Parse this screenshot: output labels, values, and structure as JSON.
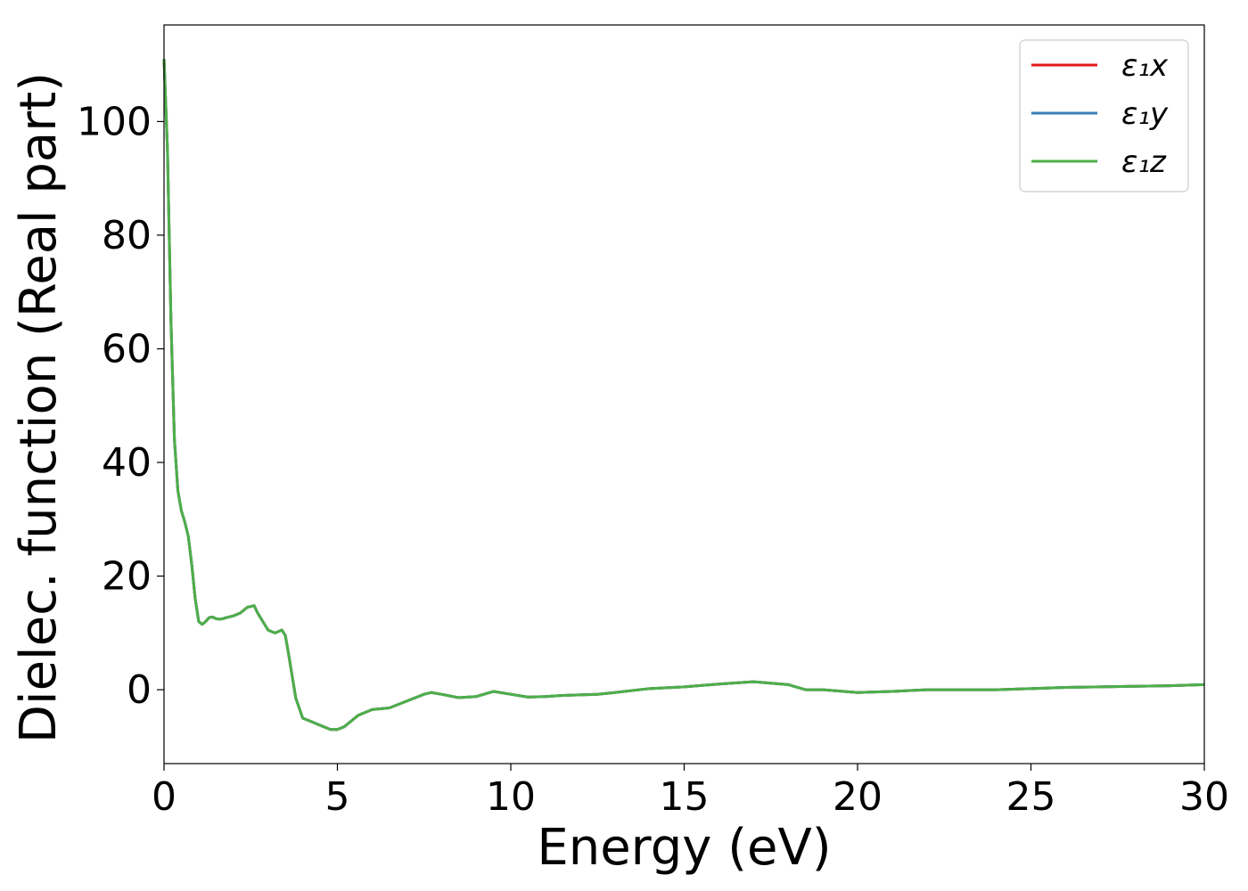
{
  "chart_data": {
    "type": "line",
    "title": "",
    "xlabel": "Energy (eV)",
    "ylabel": "Dielec. function (Real part)",
    "xlim": [
      0,
      30
    ],
    "ylim": [
      -13,
      117
    ],
    "xticks": [
      0,
      5,
      10,
      15,
      20,
      25,
      30
    ],
    "yticks": [
      0,
      20,
      40,
      60,
      80,
      100
    ],
    "grid": false,
    "legend_position": "top-right",
    "x": [
      0,
      0.1,
      0.2,
      0.3,
      0.4,
      0.5,
      0.6,
      0.7,
      0.8,
      0.9,
      1.0,
      1.1,
      1.2,
      1.3,
      1.4,
      1.5,
      1.6,
      1.7,
      1.8,
      2.0,
      2.2,
      2.4,
      2.6,
      2.7,
      2.8,
      3.0,
      3.2,
      3.4,
      3.5,
      3.6,
      3.8,
      4.0,
      4.2,
      4.4,
      4.6,
      4.8,
      5.0,
      5.2,
      5.4,
      5.6,
      6.0,
      6.5,
      7.0,
      7.5,
      7.7,
      8.0,
      8.5,
      9.0,
      9.5,
      10.0,
      10.5,
      11.0,
      11.5,
      12.0,
      12.5,
      13.0,
      14.0,
      15.0,
      16.0,
      17.0,
      18.0,
      18.5,
      19.0,
      20.0,
      21.0,
      22.0,
      23.0,
      24.0,
      25.0,
      26.0,
      27.0,
      28.0,
      29.0,
      30.0
    ],
    "series": [
      {
        "name": "ε₁x",
        "color": "#e41a1c",
        "values": [
          111,
          95,
          65,
          44,
          35,
          31.5,
          29.5,
          27,
          22,
          16,
          12,
          11.5,
          12,
          12.7,
          12.8,
          12.5,
          12.4,
          12.5,
          12.7,
          13,
          13.5,
          14.5,
          14.8,
          13.5,
          12.5,
          10.5,
          10,
          10.5,
          9.5,
          6,
          -1.5,
          -5,
          -5.5,
          -6,
          -6.5,
          -7,
          -7,
          -6.5,
          -5.5,
          -4.5,
          -3.5,
          -3.2,
          -2,
          -0.8,
          -0.5,
          -0.8,
          -1.4,
          -1.2,
          -0.3,
          -0.8,
          -1.3,
          -1.2,
          -1.0,
          -0.9,
          -0.8,
          -0.5,
          0.2,
          0.5,
          1.0,
          1.4,
          0.9,
          0.0,
          0.0,
          -0.5,
          -0.3,
          0.0,
          0.0,
          0.0,
          0.2,
          0.4,
          0.5,
          0.6,
          0.7,
          0.9
        ]
      },
      {
        "name": "ε₁y",
        "color": "#377eb8",
        "values": [
          111,
          95,
          65,
          44,
          35,
          31.5,
          29.5,
          27,
          22,
          16,
          12,
          11.5,
          12,
          12.7,
          12.8,
          12.5,
          12.4,
          12.5,
          12.7,
          13,
          13.5,
          14.5,
          14.8,
          13.5,
          12.5,
          10.5,
          10,
          10.5,
          9.5,
          6,
          -1.5,
          -5,
          -5.5,
          -6,
          -6.5,
          -7,
          -7,
          -6.5,
          -5.5,
          -4.5,
          -3.5,
          -3.2,
          -2,
          -0.8,
          -0.5,
          -0.8,
          -1.4,
          -1.2,
          -0.3,
          -0.8,
          -1.3,
          -1.2,
          -1.0,
          -0.9,
          -0.8,
          -0.5,
          0.2,
          0.5,
          1.0,
          1.4,
          0.9,
          0.0,
          0.0,
          -0.5,
          -0.3,
          0.0,
          0.0,
          0.0,
          0.2,
          0.4,
          0.5,
          0.6,
          0.7,
          0.9
        ]
      },
      {
        "name": "ε₁z",
        "color": "#4daf4a",
        "values": [
          111,
          95,
          65,
          44,
          35,
          31.5,
          29.5,
          27,
          22,
          16,
          12,
          11.5,
          12,
          12.7,
          12.8,
          12.5,
          12.4,
          12.5,
          12.7,
          13,
          13.5,
          14.5,
          14.8,
          13.5,
          12.5,
          10.5,
          10,
          10.5,
          9.5,
          6,
          -1.5,
          -5,
          -5.5,
          -6,
          -6.5,
          -7,
          -7,
          -6.5,
          -5.5,
          -4.5,
          -3.5,
          -3.2,
          -2,
          -0.8,
          -0.5,
          -0.8,
          -1.4,
          -1.2,
          -0.3,
          -0.8,
          -1.3,
          -1.2,
          -1.0,
          -0.9,
          -0.8,
          -0.5,
          0.2,
          0.5,
          1.0,
          1.4,
          0.9,
          0.0,
          0.0,
          -0.5,
          -0.3,
          0.0,
          0.0,
          0.0,
          0.2,
          0.4,
          0.5,
          0.6,
          0.7,
          0.9
        ]
      }
    ]
  }
}
